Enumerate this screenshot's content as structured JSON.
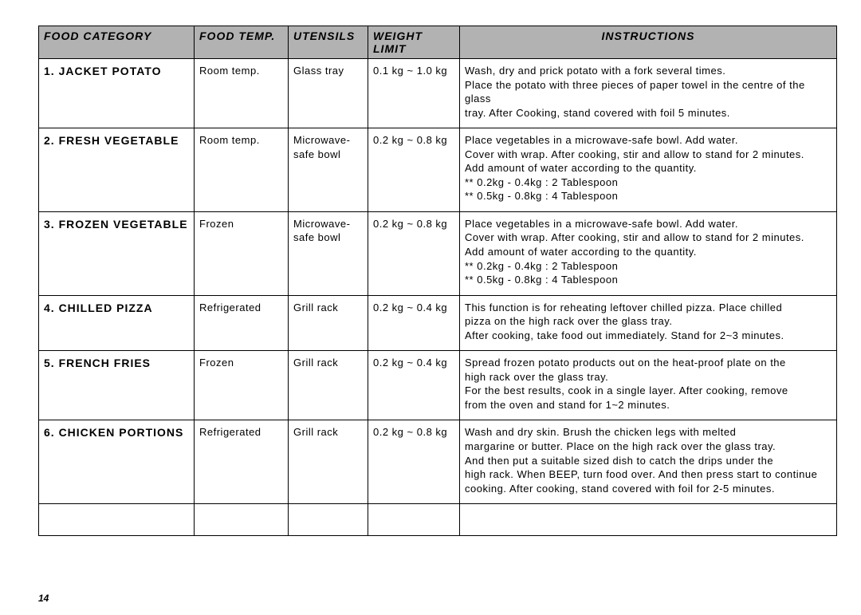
{
  "page_number": "14",
  "headers": {
    "food_category": "FOOD CATEGORY",
    "food_temp": "FOOD TEMP.",
    "utensils": "UTENSILS",
    "weight_limit": "WEIGHT LIMIT",
    "instructions": "INSTRUCTIONS"
  },
  "rows": [
    {
      "category": "1. JACKET POTATO",
      "temp": "Room temp.",
      "utensils": "Glass tray",
      "weight": "0.1 kg ~ 1.0 kg",
      "instructions": [
        "Wash, dry and prick potato with a fork several times.",
        "Place the potato with three pieces of paper towel in the centre of the glass",
        "tray. After Cooking, stand covered with foil 5 minutes."
      ]
    },
    {
      "category": "2. FRESH VEGETABLE",
      "temp": "Room temp.",
      "utensils": "Microwave-safe bowl",
      "weight": "0.2 kg ~ 0.8 kg",
      "instructions": [
        "Place vegetables in a microwave-safe bowl. Add water.",
        "Cover with wrap.  After cooking, stir and allow to stand for 2 minutes.",
        "Add amount of water according to the quantity.",
        "** 0.2kg - 0.4kg  :  2 Tablespoon",
        "** 0.5kg - 0.8kg  :  4 Tablespoon"
      ]
    },
    {
      "category": "3. FROZEN VEGETABLE",
      "temp": "Frozen",
      "utensils": "Microwave-safe bowl",
      "weight": "0.2 kg ~ 0.8 kg",
      "instructions": [
        "Place vegetables in a microwave-safe bowl. Add water.",
        "Cover with wrap.  After cooking, stir and allow to stand for 2 minutes.",
        "Add amount of water according to the quantity.",
        "** 0.2kg - 0.4kg  :  2 Tablespoon",
        "** 0.5kg - 0.8kg  :  4 Tablespoon"
      ]
    },
    {
      "category": "4. CHILLED PIZZA",
      "temp": "Refrigerated",
      "utensils": "Grill rack",
      "weight": "0.2 kg ~ 0.4 kg",
      "instructions": [
        "This function is for reheating leftover chilled pizza. Place chilled",
        "pizza on the high rack over the glass tray.",
        "After cooking, take food out immediately. Stand for 2~3 minutes."
      ]
    },
    {
      "category": "5. FRENCH FRIES",
      "temp": "Frozen",
      "utensils": "Grill rack",
      "weight": "0.2 kg ~ 0.4 kg",
      "instructions": [
        "Spread frozen potato products out on the heat-proof plate on the",
        "high rack over the glass tray.",
        "For the best results, cook in a single layer. After cooking, remove",
        "from the oven and stand for 1~2 minutes."
      ]
    },
    {
      "category": "6. CHICKEN PORTIONS",
      "temp": "Refrigerated",
      "utensils": "Grill rack",
      "weight": "0.2 kg ~ 0.8 kg",
      "instructions": [
        "Wash and dry skin. Brush the chicken legs with melted",
        "margarine or butter.   Place on the high rack over the glass tray.",
        "And then put a suitable sized dish to catch the drips under the",
        "high rack. When BEEP, turn food over.  And then press start to continue",
        "cooking. After cooking, stand covered with foil for 2-5 minutes."
      ]
    }
  ]
}
